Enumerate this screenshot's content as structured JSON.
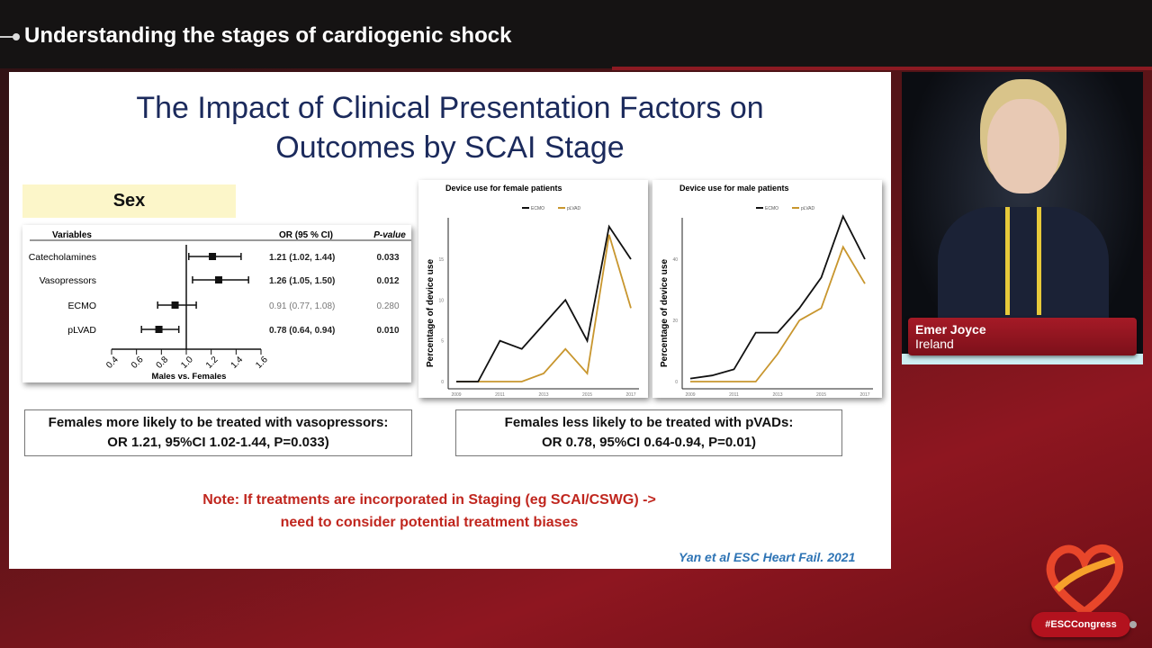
{
  "header": {
    "session_title": "Understanding the stages of cardiogenic shock"
  },
  "slide": {
    "title_line1": "The Impact of Clinical Presentation Factors on",
    "title_line2": "Outcomes by SCAI Stage",
    "section_label": "Sex",
    "callout_left_line1": "Females more likely to be treated with vasopressors:",
    "callout_left_line2": "OR 1.21, 95%CI 1.02-1.44, P=0.033)",
    "callout_right_line1": "Females less likely to be treated with pVADs:",
    "callout_right_line2": "OR 0.78, 95%CI 0.64-0.94, P=0.01)",
    "note_line1": "Note: If treatments are incorporated in Staging (eg SCAI/CSWG) ->",
    "note_line2": "need to consider potential treatment biases",
    "citation": "Yan et al ESC Heart Fail. 2021"
  },
  "speaker": {
    "name": "Emer Joyce",
    "country": "Ireland"
  },
  "branding": {
    "hashtag": "#ESCCongress"
  },
  "colors": {
    "ecmo": "#111111",
    "plvad": "#c8962e",
    "note": "#c0261e",
    "title": "#1b2a5c",
    "citation": "#2e74b5"
  },
  "chart_data": [
    {
      "type": "forest",
      "headers": {
        "variables": "Variables",
        "or": "OR (95 % CI)",
        "p": "P-value"
      },
      "xlabel": "Males vs. Females",
      "xlim": [
        0.4,
        1.6
      ],
      "xticks": [
        "0.4",
        "0.6",
        "0.8",
        "1.0",
        "1.2",
        "1.4",
        "1.6"
      ],
      "reference": 1.0,
      "rows": [
        {
          "label": "Catecholamines",
          "or": 1.21,
          "lo": 1.02,
          "hi": 1.44,
          "or_text": "1.21 (1.02, 1.44)",
          "p": "0.033",
          "significant": true
        },
        {
          "label": "Vasopressors",
          "or": 1.26,
          "lo": 1.05,
          "hi": 1.5,
          "or_text": "1.26 (1.05, 1.50)",
          "p": "0.012",
          "significant": true
        },
        {
          "label": "ECMO",
          "or": 0.91,
          "lo": 0.77,
          "hi": 1.08,
          "or_text": "0.91 (0.77, 1.08)",
          "p": "0.280",
          "significant": false
        },
        {
          "label": "pLVAD",
          "or": 0.78,
          "lo": 0.64,
          "hi": 0.94,
          "or_text": "0.78 (0.64, 0.94)",
          "p": "0.010",
          "significant": true
        }
      ]
    },
    {
      "type": "line",
      "title": "Device use for female patients",
      "ylabel": "Percentage of device use",
      "x": [
        2009,
        2010,
        2011,
        2012,
        2013,
        2014,
        2015,
        2016,
        2017
      ],
      "xticks": [
        "2009",
        "2011",
        "2013",
        "2015",
        "2017"
      ],
      "yticks": [
        "0",
        "5",
        "10",
        "15"
      ],
      "ylim": [
        0,
        15
      ],
      "legend": "top",
      "series": [
        {
          "name": "ECMO",
          "values": [
            0,
            0,
            5,
            4,
            7,
            10,
            5,
            19,
            15
          ]
        },
        {
          "name": "pLVAD",
          "values": [
            0,
            0,
            0,
            0,
            1,
            4,
            1,
            18,
            9
          ]
        }
      ]
    },
    {
      "type": "line",
      "title": "Device use for male patients",
      "ylabel": "Percentage of device use",
      "x": [
        2009,
        2010,
        2011,
        2012,
        2013,
        2014,
        2015,
        2016,
        2017
      ],
      "xticks": [
        "2009",
        "2011",
        "2013",
        "2015",
        "2017"
      ],
      "yticks": [
        "0",
        "20",
        "40"
      ],
      "ylim": [
        0,
        40
      ],
      "legend": "top",
      "series": [
        {
          "name": "ECMO",
          "values": [
            1,
            2,
            4,
            16,
            16,
            24,
            34,
            54,
            40
          ]
        },
        {
          "name": "pLVAD",
          "values": [
            0,
            0,
            0,
            0,
            9,
            20,
            24,
            44,
            32
          ]
        }
      ]
    }
  ]
}
